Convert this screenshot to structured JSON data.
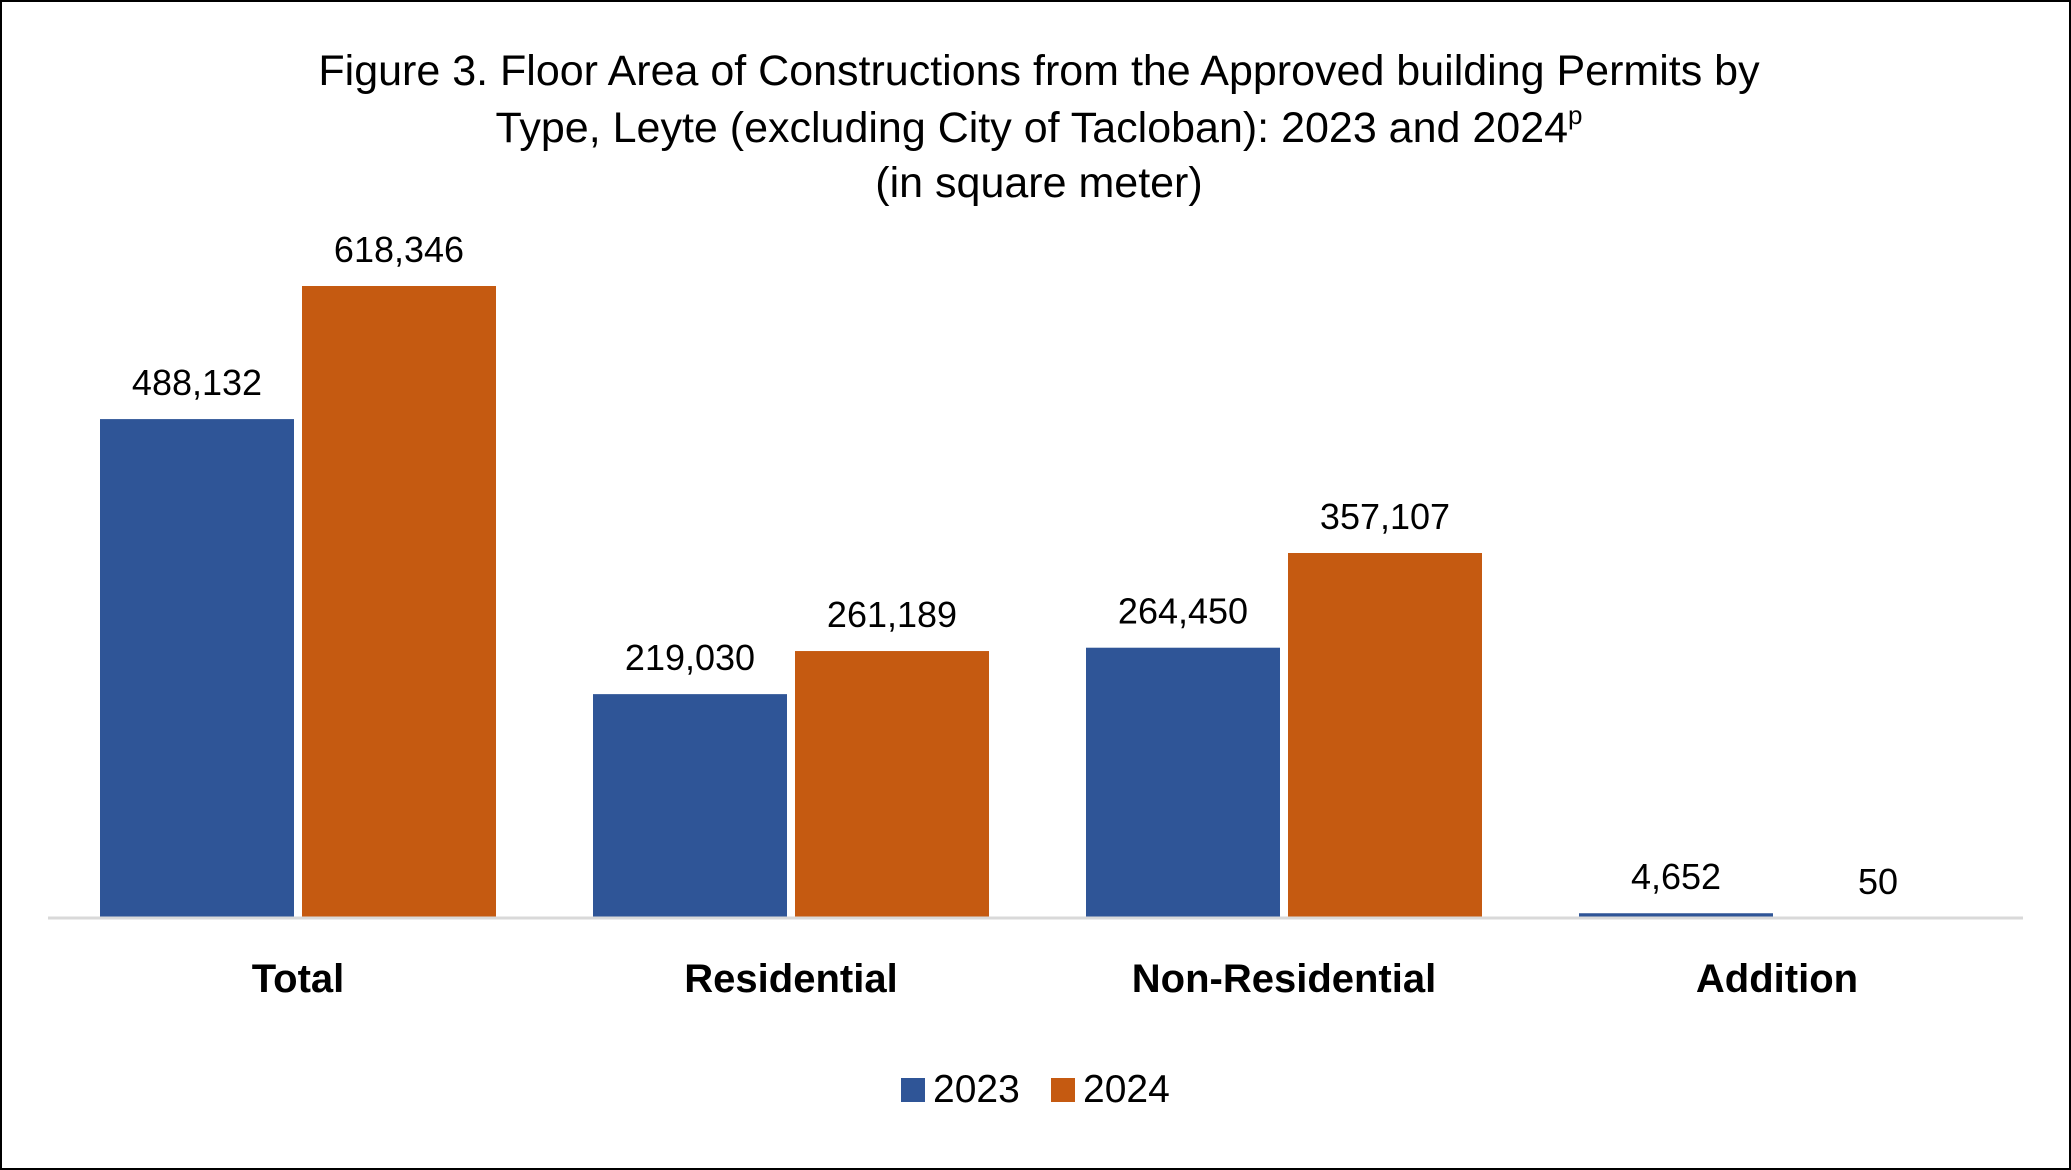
{
  "chart_data": {
    "type": "bar",
    "title": {
      "line1": "Figure 3. Floor Area of Constructions from the Approved building Permits by",
      "line2": "Type, Leyte (excluding City of Tacloban): 2023 and 2024",
      "line2_sup": "p",
      "line3": "(in square meter)"
    },
    "xlabel": "",
    "ylabel": "",
    "categories": [
      "Total",
      "Residential",
      "Non-Residential",
      "Addition"
    ],
    "series": [
      {
        "name": "2023",
        "color": "#2F5597",
        "values": [
          488132,
          219030,
          264450,
          4652
        ],
        "labels": [
          "488,132",
          "219,030",
          "264,450",
          "4,652"
        ]
      },
      {
        "name": "2024",
        "color": "#C55A11",
        "values": [
          618346,
          261189,
          357107,
          50
        ],
        "labels": [
          "618,346",
          "261,189",
          "357,107",
          "50"
        ]
      }
    ],
    "ylim": [
      0,
      618346
    ],
    "grid": false,
    "legend": "bottom-center",
    "axis_color": "#D9D9D9"
  }
}
